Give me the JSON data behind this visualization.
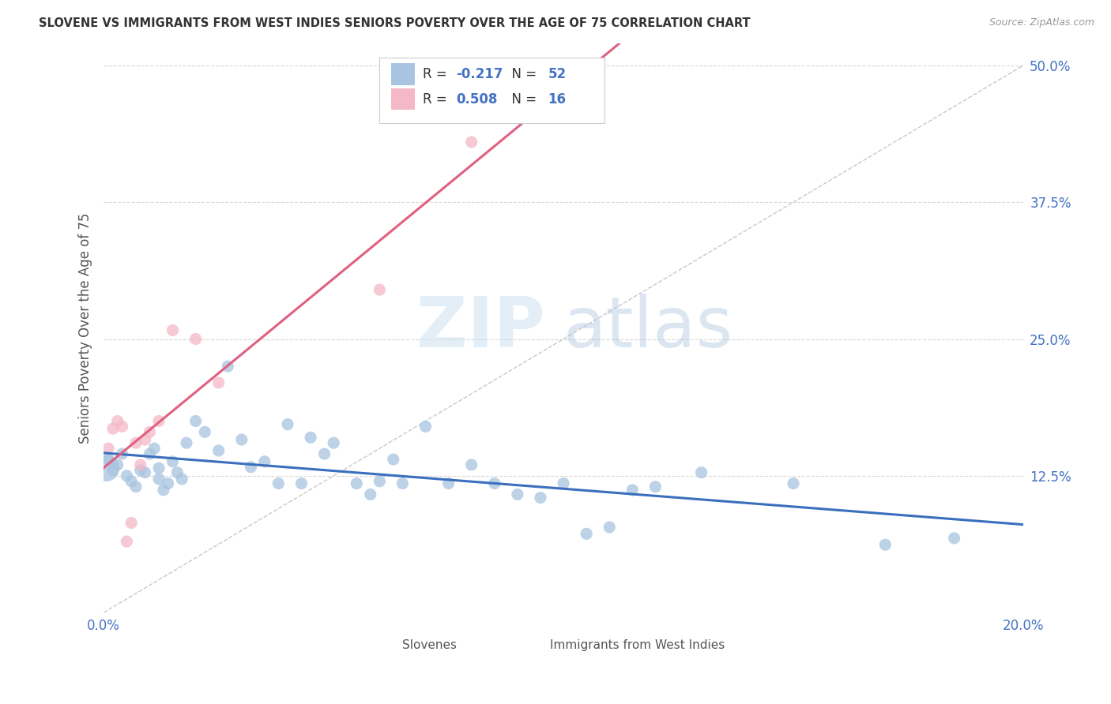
{
  "title": "SLOVENE VS IMMIGRANTS FROM WEST INDIES SENIORS POVERTY OVER THE AGE OF 75 CORRELATION CHART",
  "source": "Source: ZipAtlas.com",
  "ylabel": "Seniors Poverty Over the Age of 75",
  "xlim": [
    0.0,
    0.2
  ],
  "ylim": [
    0.0,
    0.52
  ],
  "xticks": [
    0.0,
    0.04,
    0.08,
    0.12,
    0.16,
    0.2
  ],
  "xticklabels": [
    "0.0%",
    "",
    "",
    "",
    "",
    "20.0%"
  ],
  "yticks": [
    0.0,
    0.125,
    0.25,
    0.375,
    0.5
  ],
  "yticklabels": [
    "",
    "12.5%",
    "25.0%",
    "37.5%",
    "50.0%"
  ],
  "slovene_R": -0.217,
  "slovene_N": 52,
  "westindies_R": 0.508,
  "westindies_N": 16,
  "slovene_color": "#a8c4e0",
  "westindies_color": "#f4b8c8",
  "trendline_slovene_color": "#3a6fbd",
  "trendline_westindies_color": "#e06080",
  "trendline_diagonal_color": "#c8c8c8",
  "background_color": "#ffffff",
  "grid_color": "#d8d8d8",
  "watermark_zip": "ZIP",
  "watermark_atlas": "atlas",
  "slovene_x": [
    0.001,
    0.002,
    0.003,
    0.004,
    0.005,
    0.006,
    0.007,
    0.008,
    0.009,
    0.01,
    0.011,
    0.012,
    0.012,
    0.013,
    0.014,
    0.015,
    0.016,
    0.017,
    0.018,
    0.02,
    0.022,
    0.025,
    0.027,
    0.03,
    0.032,
    0.035,
    0.038,
    0.04,
    0.043,
    0.045,
    0.048,
    0.05,
    0.055,
    0.058,
    0.06,
    0.063,
    0.065,
    0.07,
    0.075,
    0.08,
    0.085,
    0.09,
    0.095,
    0.1,
    0.105,
    0.11,
    0.115,
    0.12,
    0.13,
    0.15,
    0.17,
    0.185
  ],
  "slovene_y": [
    0.14,
    0.13,
    0.135,
    0.145,
    0.125,
    0.12,
    0.115,
    0.13,
    0.128,
    0.145,
    0.15,
    0.132,
    0.122,
    0.112,
    0.118,
    0.138,
    0.128,
    0.122,
    0.155,
    0.175,
    0.165,
    0.148,
    0.225,
    0.158,
    0.133,
    0.138,
    0.118,
    0.172,
    0.118,
    0.16,
    0.145,
    0.155,
    0.118,
    0.108,
    0.12,
    0.14,
    0.118,
    0.17,
    0.118,
    0.135,
    0.118,
    0.108,
    0.105,
    0.118,
    0.072,
    0.078,
    0.112,
    0.115,
    0.128,
    0.118,
    0.062,
    0.068
  ],
  "westindies_x": [
    0.001,
    0.002,
    0.003,
    0.004,
    0.005,
    0.006,
    0.007,
    0.008,
    0.009,
    0.01,
    0.012,
    0.015,
    0.02,
    0.025,
    0.06,
    0.08
  ],
  "westindies_y": [
    0.15,
    0.168,
    0.175,
    0.17,
    0.065,
    0.082,
    0.155,
    0.135,
    0.158,
    0.165,
    0.175,
    0.258,
    0.25,
    0.21,
    0.295,
    0.43
  ],
  "legend_R_color": "#4472c4",
  "legend_text_color": "#333333",
  "tick_color": "#4472c4",
  "ylabel_color": "#555555",
  "title_color": "#333333"
}
